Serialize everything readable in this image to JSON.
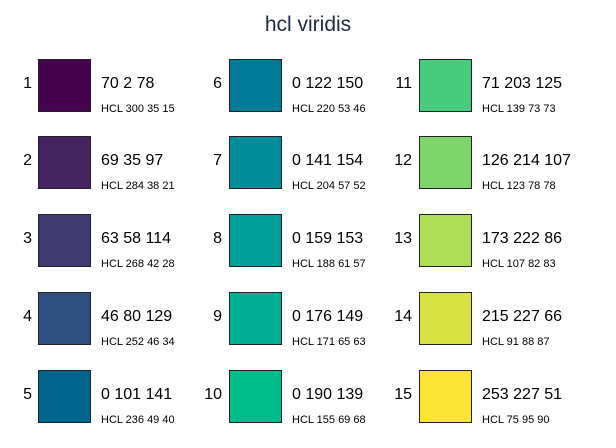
{
  "title": "hcl viridis",
  "colors": [
    {
      "index": "1",
      "rgb": "70 2 78",
      "hcl": "HCL 300 35 15",
      "hex": "#46024e"
    },
    {
      "index": "2",
      "rgb": "69 35 97",
      "hcl": "HCL 284 38 21",
      "hex": "#452361"
    },
    {
      "index": "3",
      "rgb": "63 58 114",
      "hcl": "HCL 268 42 28",
      "hex": "#3f3a72"
    },
    {
      "index": "4",
      "rgb": "46 80 129",
      "hcl": "HCL 252 46 34",
      "hex": "#2e5081"
    },
    {
      "index": "5",
      "rgb": "0 101 141",
      "hcl": "HCL 236 49 40",
      "hex": "#00658d"
    },
    {
      "index": "6",
      "rgb": "0 122 150",
      "hcl": "HCL 220 53 46",
      "hex": "#007a96"
    },
    {
      "index": "7",
      "rgb": "0 141 154",
      "hcl": "HCL 204 57 52",
      "hex": "#008d9a"
    },
    {
      "index": "8",
      "rgb": "0 159 153",
      "hcl": "HCL 188 61 57",
      "hex": "#009f99"
    },
    {
      "index": "9",
      "rgb": "0 176 149",
      "hcl": "HCL 171 65 63",
      "hex": "#00b095"
    },
    {
      "index": "10",
      "rgb": "0 190 139",
      "hcl": "HCL 155 69 68",
      "hex": "#00be8b"
    },
    {
      "index": "11",
      "rgb": "71 203 125",
      "hcl": "HCL 139 73 73",
      "hex": "#47cb7d"
    },
    {
      "index": "12",
      "rgb": "126 214 107",
      "hcl": "HCL 123 78 78",
      "hex": "#7ed66b"
    },
    {
      "index": "13",
      "rgb": "173 222 86",
      "hcl": "HCL 107 82 83",
      "hex": "#adde56"
    },
    {
      "index": "14",
      "rgb": "215 227 66",
      "hcl": "HCL 91 88 87",
      "hex": "#d7e342"
    },
    {
      "index": "15",
      "rgb": "253 227 51",
      "hcl": "HCL 75 95 90",
      "hex": "#fde333"
    }
  ]
}
